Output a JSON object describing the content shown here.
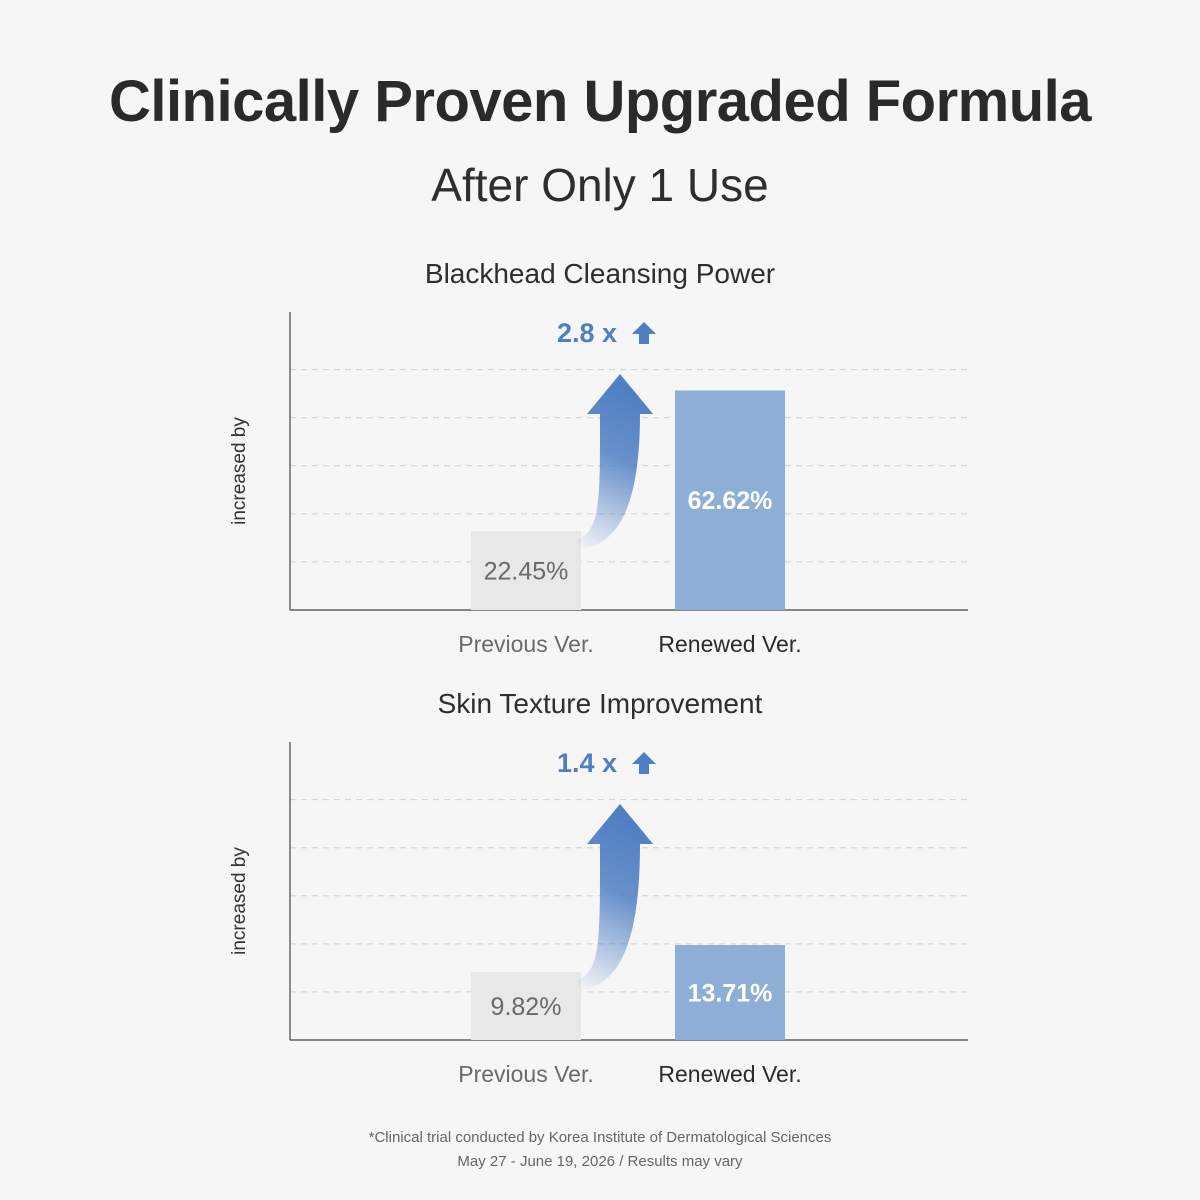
{
  "header": {
    "title": "Clinically Proven Upgraded Formula",
    "subtitle": "After Only 1 Use"
  },
  "colors": {
    "background": "#f6f6f6",
    "previous_bar": "#e8e8e8",
    "renewed_bar": "#8eaed6",
    "accent_blue": "#4f7fc3",
    "axis": "#444444",
    "gridline": "#cfcfcf"
  },
  "chart_data": [
    {
      "type": "bar",
      "title": "Blackhead Cleansing Power",
      "ylabel": "increased by",
      "categories": [
        "Previous Ver.",
        "Renewed Ver."
      ],
      "values": [
        22.45,
        62.62
      ],
      "value_labels": [
        "22.45%",
        "62.62%"
      ],
      "multiplier_label": "2.8 x",
      "ylim": [
        0,
        85
      ],
      "grid": true,
      "arrow_icon": "up-arrow-icon"
    },
    {
      "type": "bar",
      "title": "Skin Texture Improvement",
      "ylabel": "increased by",
      "categories": [
        "Previous Ver.",
        "Renewed Ver."
      ],
      "values": [
        9.82,
        13.71
      ],
      "value_labels": [
        "9.82%",
        "13.71%"
      ],
      "multiplier_label": "1.4 x",
      "ylim": [
        0,
        43
      ],
      "grid": true,
      "arrow_icon": "up-arrow-icon"
    }
  ],
  "footnote": {
    "line1": "*Clinical trial conducted by Korea Institute of Dermatological Sciences",
    "line2": "May 27 - June 19, 2026 / Results may vary"
  }
}
